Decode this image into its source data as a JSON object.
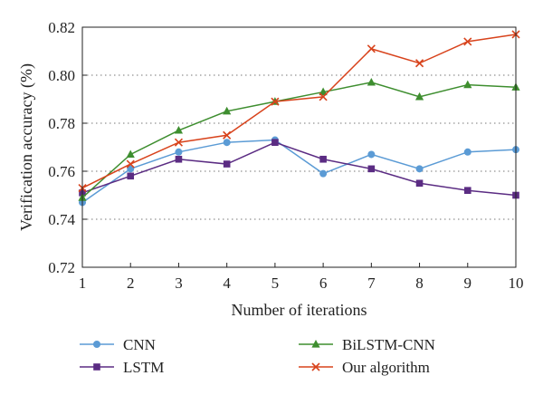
{
  "chart_data": {
    "type": "line",
    "xlabel": "Number of iterations",
    "ylabel": "Verification accuracy (%)",
    "x": [
      1,
      2,
      3,
      4,
      5,
      6,
      7,
      8,
      9,
      10
    ],
    "xlim": [
      1,
      10
    ],
    "ylim": [
      0.72,
      0.82
    ],
    "yticks": [
      "0.72",
      "0.74",
      "0.76",
      "0.78",
      "0.80",
      "0.82"
    ],
    "xticks": [
      "1",
      "2",
      "3",
      "4",
      "5",
      "6",
      "7",
      "8",
      "9",
      "10"
    ],
    "grid": "horizontal dotted",
    "legend_position": "below",
    "series": [
      {
        "name": "CNN",
        "color": "#5b9bd5",
        "marker": "circle",
        "values": [
          0.747,
          0.761,
          0.768,
          0.772,
          0.773,
          0.759,
          0.767,
          0.761,
          0.768,
          0.769
        ]
      },
      {
        "name": "LSTM",
        "color": "#5b2c83",
        "marker": "square",
        "values": [
          0.751,
          0.758,
          0.765,
          0.763,
          0.772,
          0.765,
          0.761,
          0.755,
          0.752,
          0.75
        ]
      },
      {
        "name": "BiLSTM-CNN",
        "color": "#3e8e2f",
        "marker": "triangle",
        "values": [
          0.749,
          0.767,
          0.777,
          0.785,
          0.789,
          0.793,
          0.797,
          0.791,
          0.796,
          0.795
        ]
      },
      {
        "name": "Our algorithm",
        "color": "#d8431c",
        "marker": "x",
        "values": [
          0.753,
          0.763,
          0.772,
          0.775,
          0.789,
          0.791,
          0.811,
          0.805,
          0.814,
          0.817
        ]
      }
    ]
  }
}
